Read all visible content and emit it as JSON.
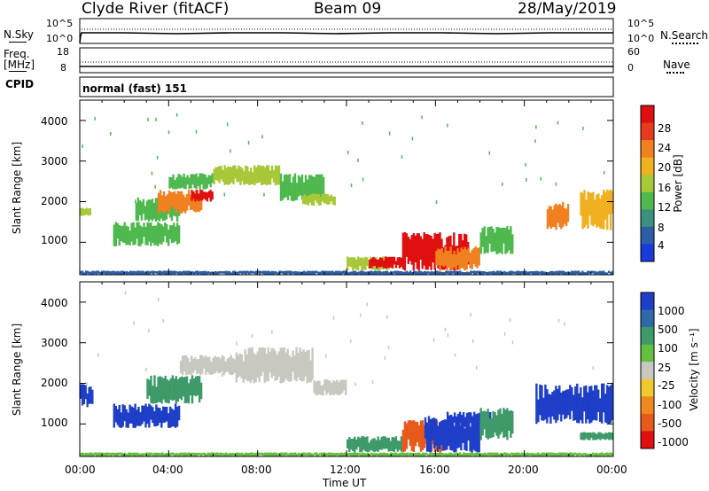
{
  "header": {
    "station": "Clyde River (fitACF)",
    "beam": "Beam 09",
    "date": "28/May/2019"
  },
  "status_panels": {
    "nsky_label": "N.Sky",
    "nsky_ticks": [
      "10^5",
      "10^0"
    ],
    "nsearch_label": "N.Search",
    "nsearch_ticks": [
      "10^5",
      "10^0"
    ],
    "freq_label_top": "Freq.",
    "freq_label_bottom": "[MHz]",
    "freq_ticks": [
      "18",
      "8"
    ],
    "nave_label": "Nave",
    "nave_ticks": [
      "60",
      "0"
    ],
    "cpid_label": "CPID",
    "cpid_value": "normal (fast) 151"
  },
  "time_axis": {
    "ticks": [
      "00:00",
      "04:00",
      "08:00",
      "12:00",
      "16:00",
      "20:00",
      "00:00"
    ],
    "label": "Time UT"
  },
  "colors": {
    "power_scale": [
      "#1a3bd9",
      "#2a5fa8",
      "#3d8f7f",
      "#4fb84f",
      "#a8c83a",
      "#f0b020",
      "#f08020",
      "#e83a1e",
      "#e01010"
    ],
    "velocity_scale": [
      "#1f3fc8",
      "#2e6aa8",
      "#3f9a6a",
      "#66c040",
      "#c8c8c0",
      "#f0c830",
      "#f08820",
      "#e85a1c",
      "#e01010"
    ]
  },
  "chart_data": [
    {
      "type": "heatmap",
      "panel": "power",
      "ylabel": "Slant Range [km]",
      "yticks": [
        "1000",
        "2000",
        "3000",
        "4000"
      ],
      "ylim": [
        200,
        4500
      ],
      "xlim_hours": [
        0,
        24
      ],
      "colorbar_label": "Power [dB]",
      "colorbar_ticks": [
        "4",
        "8",
        "12",
        "16",
        "20",
        "24",
        "28"
      ],
      "features": [
        {
          "x": [
            0.0,
            0.5
          ],
          "y": [
            1650,
            1850
          ],
          "value": 16
        },
        {
          "x": [
            1.5,
            4.5
          ],
          "y": [
            900,
            1500
          ],
          "value": 12
        },
        {
          "x": [
            2.5,
            4.5
          ],
          "y": [
            1500,
            2100
          ],
          "value": 10
        },
        {
          "x": [
            3.5,
            5.5
          ],
          "y": [
            1700,
            2300
          ],
          "value": 20
        },
        {
          "x": [
            4.0,
            6.0
          ],
          "y": [
            2300,
            2700
          ],
          "value": 10
        },
        {
          "x": [
            5.0,
            6.0
          ],
          "y": [
            2000,
            2300
          ],
          "value": 26
        },
        {
          "x": [
            6.0,
            9.0
          ],
          "y": [
            2400,
            2900
          ],
          "value": 14
        },
        {
          "x": [
            9.0,
            11.0
          ],
          "y": [
            2000,
            2700
          ],
          "value": 12
        },
        {
          "x": [
            10.0,
            11.5
          ],
          "y": [
            1900,
            2200
          ],
          "value": 14
        },
        {
          "x": [
            12.0,
            14.0
          ],
          "y": [
            300,
            650
          ],
          "value": 14
        },
        {
          "x": [
            13.0,
            14.5
          ],
          "y": [
            350,
            650
          ],
          "value": 28
        },
        {
          "x": [
            14.5,
            17.5
          ],
          "y": [
            300,
            1250
          ],
          "value": 28
        },
        {
          "x": [
            16.0,
            18.0
          ],
          "y": [
            300,
            900
          ],
          "value": 20
        },
        {
          "x": [
            18.0,
            19.5
          ],
          "y": [
            700,
            1400
          ],
          "value": 10
        },
        {
          "x": [
            21.0,
            22.0
          ],
          "y": [
            1300,
            2000
          ],
          "value": 20
        },
        {
          "x": [
            22.5,
            24.0
          ],
          "y": [
            1300,
            2300
          ],
          "value": 18
        },
        {
          "x": [
            0.0,
            24.0
          ],
          "y": [
            200,
            300
          ],
          "value": 6
        }
      ]
    },
    {
      "type": "heatmap",
      "panel": "velocity",
      "ylabel": "Slant Range [km]",
      "yticks": [
        "1000",
        "2000",
        "3000",
        "4000"
      ],
      "ylim": [
        200,
        4500
      ],
      "xlim_hours": [
        0,
        24
      ],
      "colorbar_label": "Velocity [m s⁻¹]",
      "colorbar_ticks": [
        "1000",
        "500",
        "100",
        "25",
        "-25",
        "-100",
        "-500",
        "-1000"
      ],
      "features": [
        {
          "x": [
            0.0,
            0.6
          ],
          "y": [
            1400,
            2000
          ],
          "value": 1000
        },
        {
          "x": [
            1.5,
            4.5
          ],
          "y": [
            900,
            1500
          ],
          "value": 1000
        },
        {
          "x": [
            3.0,
            5.5
          ],
          "y": [
            1500,
            2200
          ],
          "value": 100
        },
        {
          "x": [
            4.5,
            7.0
          ],
          "y": [
            2200,
            2700
          ],
          "value": 0
        },
        {
          "x": [
            7.0,
            10.5
          ],
          "y": [
            2000,
            2900
          ],
          "value": 0
        },
        {
          "x": [
            10.5,
            12.0
          ],
          "y": [
            1700,
            2100
          ],
          "value": 0
        },
        {
          "x": [
            12.0,
            14.5
          ],
          "y": [
            300,
            700
          ],
          "value": 100
        },
        {
          "x": [
            14.5,
            16.5
          ],
          "y": [
            300,
            1100
          ],
          "value": -300
        },
        {
          "x": [
            15.5,
            18.0
          ],
          "y": [
            300,
            1200
          ],
          "value": 500
        },
        {
          "x": [
            16.5,
            18.5
          ],
          "y": [
            900,
            1300
          ],
          "value": 1000
        },
        {
          "x": [
            18.0,
            19.5
          ],
          "y": [
            600,
            1400
          ],
          "value": 100
        },
        {
          "x": [
            20.5,
            24.0
          ],
          "y": [
            1000,
            2000
          ],
          "value": 1000
        },
        {
          "x": [
            22.5,
            24.0
          ],
          "y": [
            600,
            800
          ],
          "value": 100
        },
        {
          "x": [
            0.0,
            24.0
          ],
          "y": [
            200,
            300
          ],
          "value": 25
        }
      ]
    }
  ]
}
